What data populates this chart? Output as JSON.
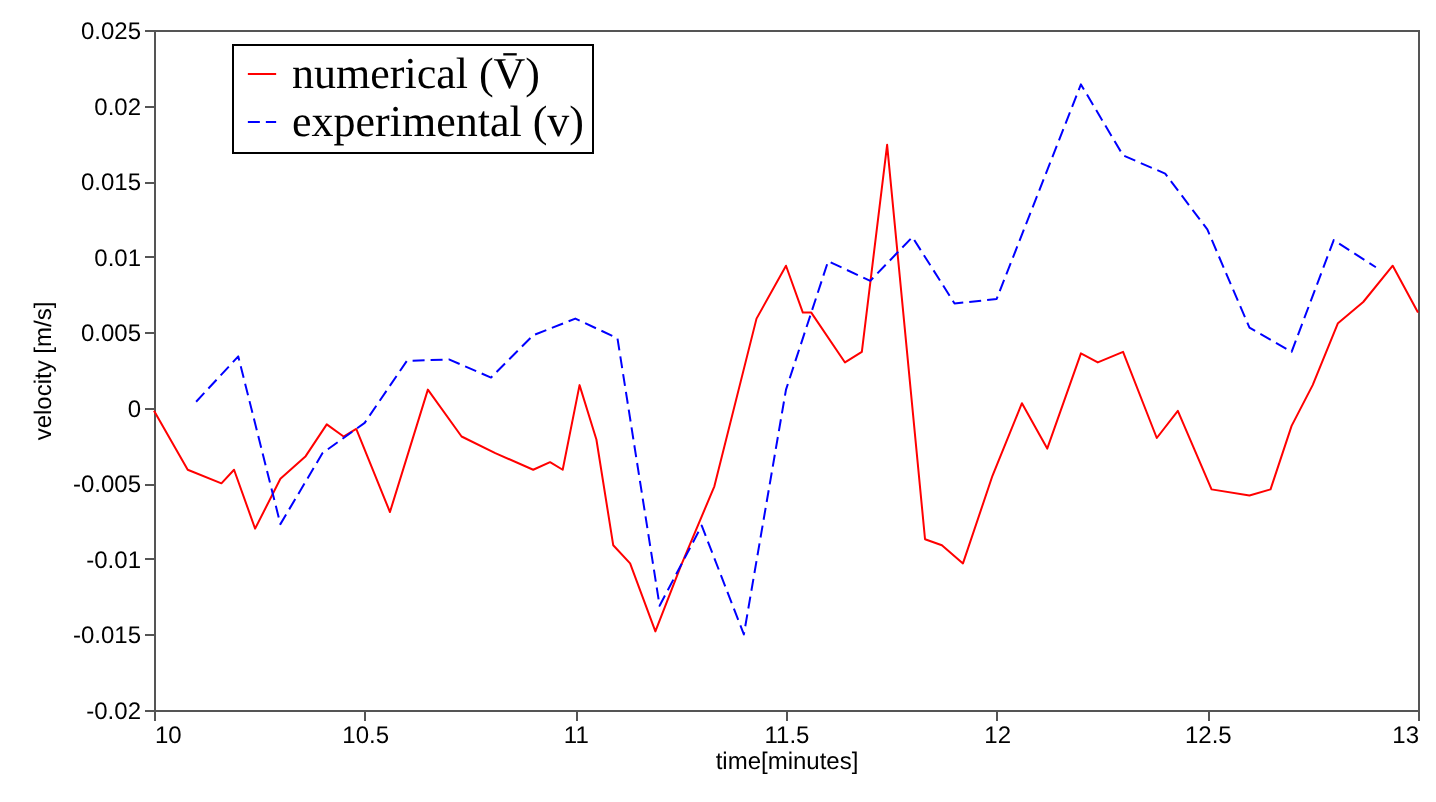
{
  "chart_data": {
    "type": "line",
    "xlabel": "time[minutes]",
    "ylabel": "velocity [m/s]",
    "xlim": [
      10,
      13
    ],
    "xticks": [
      10,
      10.5,
      11,
      11.5,
      12,
      12.5,
      13
    ],
    "ylim": [
      -0.02,
      0.025
    ],
    "yticks": [
      -0.02,
      -0.015,
      -0.01,
      -0.005,
      0,
      0.005,
      0.01,
      0.015,
      0.02,
      0.025
    ],
    "grid": false,
    "legend": "top left",
    "series": [
      {
        "name": "numerical (V̄)",
        "color": "#ff0000",
        "line_style": "solid",
        "x": [
          10.0,
          10.08,
          10.16,
          10.19,
          10.24,
          10.3,
          10.36,
          10.41,
          10.45,
          10.48,
          10.56,
          10.65,
          10.73,
          10.81,
          10.9,
          10.94,
          10.97,
          11.01,
          11.05,
          11.09,
          11.13,
          11.19,
          11.25,
          11.33,
          11.43,
          11.5,
          11.54,
          11.56,
          11.64,
          11.68,
          11.74,
          11.83,
          11.87,
          11.92,
          11.99,
          12.06,
          12.12,
          12.2,
          12.24,
          12.3,
          12.38,
          12.43,
          12.51,
          12.6,
          12.65,
          12.7,
          12.75,
          12.81,
          12.87,
          12.94,
          13.0
        ],
        "values": [
          -0.0002,
          -0.0041,
          -0.005,
          -0.0041,
          -0.008,
          -0.0047,
          -0.0032,
          -0.0011,
          -0.0019,
          -0.0014,
          -0.0069,
          0.0012,
          -0.0019,
          -0.003,
          -0.0041,
          -0.0036,
          -0.0041,
          0.0015,
          -0.0021,
          -0.0091,
          -0.0103,
          -0.0148,
          -0.0105,
          -0.0052,
          0.0059,
          0.0094,
          0.0063,
          0.0063,
          0.003,
          0.0037,
          0.0174,
          -0.0087,
          -0.0091,
          -0.0103,
          -0.0045,
          0.0003,
          -0.0027,
          0.0036,
          0.003,
          0.0037,
          -0.002,
          -0.0002,
          -0.0054,
          -0.0058,
          -0.0054,
          -0.0012,
          0.0015,
          0.0056,
          0.007,
          0.0094,
          0.0063
        ]
      },
      {
        "name": "experimental (v)",
        "color": "#0000ff",
        "line_style": "dashed",
        "x": [
          10.1,
          10.2,
          10.3,
          10.4,
          10.5,
          10.6,
          10.7,
          10.8,
          10.9,
          11.0,
          11.1,
          11.2,
          11.3,
          11.4,
          11.5,
          11.6,
          11.7,
          11.8,
          11.9,
          12.0,
          12.1,
          12.2,
          12.3,
          12.4,
          12.5,
          12.6,
          12.7,
          12.8,
          12.9
        ],
        "values": [
          0.0004,
          0.0034,
          -0.0077,
          -0.003,
          -0.001,
          0.0031,
          0.0032,
          0.002,
          0.0048,
          0.0059,
          0.0046,
          -0.0131,
          -0.0078,
          -0.015,
          0.0012,
          0.0097,
          0.0084,
          0.0113,
          0.0069,
          0.0072,
          0.0143,
          0.0214,
          0.0167,
          0.0155,
          0.0118,
          0.0053,
          0.0037,
          0.0111,
          0.0093
        ]
      }
    ]
  }
}
